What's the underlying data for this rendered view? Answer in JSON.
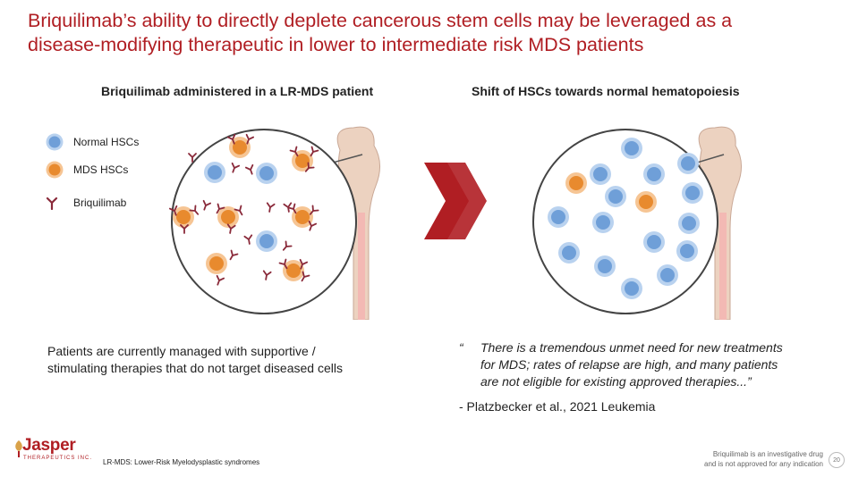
{
  "title": {
    "line1": "Briquilimab’s ability to directly deplete cancerous stem cells may be leveraged as a",
    "line2": "disease-modifying therapeutic in lower to intermediate risk MDS patients"
  },
  "left": {
    "heading": "Briquilimab administered in a LR-MDS patient",
    "text_line1": "Patients are currently managed with supportive /",
    "text_line2": "stimulating therapies that do not target diseased cells"
  },
  "right": {
    "heading": "Shift of HSCs towards normal hematopoiesis",
    "quote_mark": "“",
    "quote_line1": "There is a tremendous unmet need for new treatments",
    "quote_line2": "for MDS; rates of relapse are high, and many patients",
    "quote_line3": "are not eligible for existing approved therapies...”",
    "attribution": "- Platzbecker et al., 2021 Leukemia"
  },
  "legend": {
    "normal": "Normal HSCs",
    "mds": "MDS HSCs",
    "briquilimab": "Briquilimab"
  },
  "colors": {
    "brand_red": "#b01e23",
    "normal_cell": "#6f9fd8",
    "mds_cell": "#e88a2e",
    "antibody": "#8a2a3a"
  },
  "footer": {
    "logo": "Jasper",
    "logo_sub": "THERAPEUTICS INC.",
    "footnote": "LR-MDS: Lower-Risk Myelodysplastic syndromes",
    "disclaimer_line1": "Briquilimab is an investigative drug",
    "disclaimer_line2": "and is not approved for any indication",
    "page": "20"
  }
}
